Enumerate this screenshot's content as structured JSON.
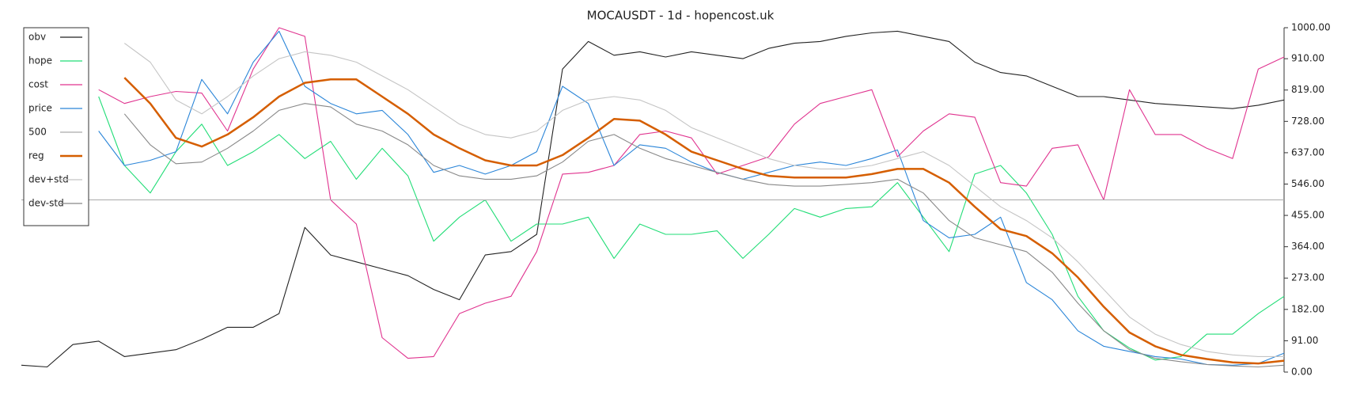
{
  "chart_data": {
    "type": "line",
    "title": "MOCAUSDT - 1d - hopencost.uk",
    "ylim": [
      0,
      1000
    ],
    "yticks": [
      {
        "value": 0,
        "label": "0.00"
      },
      {
        "value": 91,
        "label": "91.00"
      },
      {
        "value": 182,
        "label": "182.00"
      },
      {
        "value": 273,
        "label": "273.00"
      },
      {
        "value": 364,
        "label": "364.00"
      },
      {
        "value": 455,
        "label": "455.00"
      },
      {
        "value": 546,
        "label": "546.00"
      },
      {
        "value": 637,
        "label": "637.00"
      },
      {
        "value": 728,
        "label": "728.00"
      },
      {
        "value": 819,
        "label": "819.00"
      },
      {
        "value": 910,
        "label": "910.00"
      },
      {
        "value": 1000,
        "label": "1000.00"
      }
    ],
    "grid": false,
    "legend": "upper left",
    "series": [
      {
        "name": "obv",
        "color": "#222222",
        "values": [
          20,
          15,
          80,
          90,
          45,
          55,
          65,
          95,
          130,
          130,
          170,
          420,
          340,
          320,
          300,
          280,
          240,
          210,
          340,
          350,
          400,
          880,
          960,
          920,
          930,
          915,
          930,
          920,
          910,
          940,
          955,
          960,
          975,
          985,
          990,
          975,
          960,
          900,
          870,
          860,
          830,
          800,
          800,
          790,
          780,
          775,
          770,
          765,
          775,
          790
        ]
      },
      {
        "name": "hope",
        "color": "#22dd77",
        "values": [
          null,
          null,
          null,
          800,
          600,
          520,
          640,
          720,
          600,
          640,
          690,
          620,
          670,
          560,
          650,
          570,
          380,
          450,
          500,
          380,
          430,
          430,
          450,
          330,
          430,
          400,
          400,
          410,
          330,
          400,
          475,
          450,
          475,
          480,
          550,
          450,
          350,
          575,
          600,
          520,
          400,
          220,
          120,
          70,
          35,
          45,
          110,
          110,
          170,
          220
        ]
      },
      {
        "name": "cost",
        "color": "#e0338f",
        "values": [
          null,
          null,
          null,
          820,
          780,
          800,
          815,
          810,
          700,
          880,
          1000,
          975,
          500,
          430,
          100,
          40,
          45,
          170,
          200,
          220,
          350,
          575,
          580,
          600,
          690,
          700,
          680,
          575,
          600,
          625,
          720,
          780,
          800,
          820,
          625,
          700,
          750,
          740,
          550,
          540,
          650,
          660,
          500,
          820,
          690,
          690,
          650,
          620,
          880,
          915
        ]
      },
      {
        "name": "price",
        "color": "#2a85d8",
        "values": [
          null,
          null,
          null,
          700,
          600,
          615,
          640,
          850,
          750,
          900,
          990,
          830,
          780,
          750,
          760,
          690,
          580,
          600,
          575,
          600,
          640,
          830,
          780,
          600,
          660,
          650,
          610,
          580,
          560,
          580,
          600,
          610,
          600,
          620,
          645,
          440,
          390,
          400,
          450,
          260,
          210,
          120,
          75,
          60,
          45,
          38,
          22,
          20,
          25,
          55
        ]
      },
      {
        "name": "500",
        "color": "#aaaaaa",
        "values": [
          500,
          500,
          500,
          500,
          500,
          500,
          500,
          500,
          500,
          500,
          500,
          500,
          500,
          500,
          500,
          500,
          500,
          500,
          500,
          500,
          500,
          500,
          500,
          500,
          500,
          500,
          500,
          500,
          500,
          500,
          500,
          500,
          500,
          500,
          500,
          500,
          500,
          500,
          500,
          500,
          500,
          500,
          500,
          500,
          500,
          500,
          500,
          500,
          500,
          500
        ]
      },
      {
        "name": "reg",
        "color": "#d55e00",
        "values": [
          null,
          null,
          null,
          null,
          855,
          780,
          680,
          655,
          690,
          740,
          800,
          840,
          850,
          850,
          800,
          750,
          690,
          650,
          615,
          600,
          600,
          630,
          680,
          735,
          730,
          690,
          640,
          615,
          590,
          570,
          565,
          565,
          565,
          575,
          590,
          590,
          550,
          480,
          415,
          395,
          345,
          275,
          190,
          115,
          75,
          50,
          38,
          28,
          25,
          33
        ]
      },
      {
        "name": "dev+std",
        "color": "#c4c4c4",
        "values": [
          null,
          null,
          null,
          null,
          955,
          900,
          790,
          750,
          800,
          860,
          910,
          930,
          920,
          900,
          860,
          820,
          770,
          720,
          690,
          680,
          700,
          760,
          790,
          800,
          790,
          760,
          710,
          680,
          650,
          620,
          600,
          590,
          590,
          600,
          620,
          640,
          600,
          540,
          480,
          440,
          390,
          320,
          240,
          160,
          110,
          80,
          60,
          50,
          45,
          45
        ]
      },
      {
        "name": "dev-std",
        "color": "#888888",
        "values": [
          null,
          null,
          null,
          null,
          750,
          660,
          605,
          610,
          650,
          700,
          760,
          780,
          770,
          720,
          700,
          660,
          600,
          570,
          560,
          560,
          570,
          610,
          670,
          690,
          650,
          620,
          600,
          580,
          560,
          545,
          540,
          540,
          545,
          550,
          560,
          520,
          440,
          390,
          370,
          350,
          290,
          200,
          120,
          65,
          40,
          30,
          22,
          18,
          15,
          20
        ]
      }
    ]
  }
}
